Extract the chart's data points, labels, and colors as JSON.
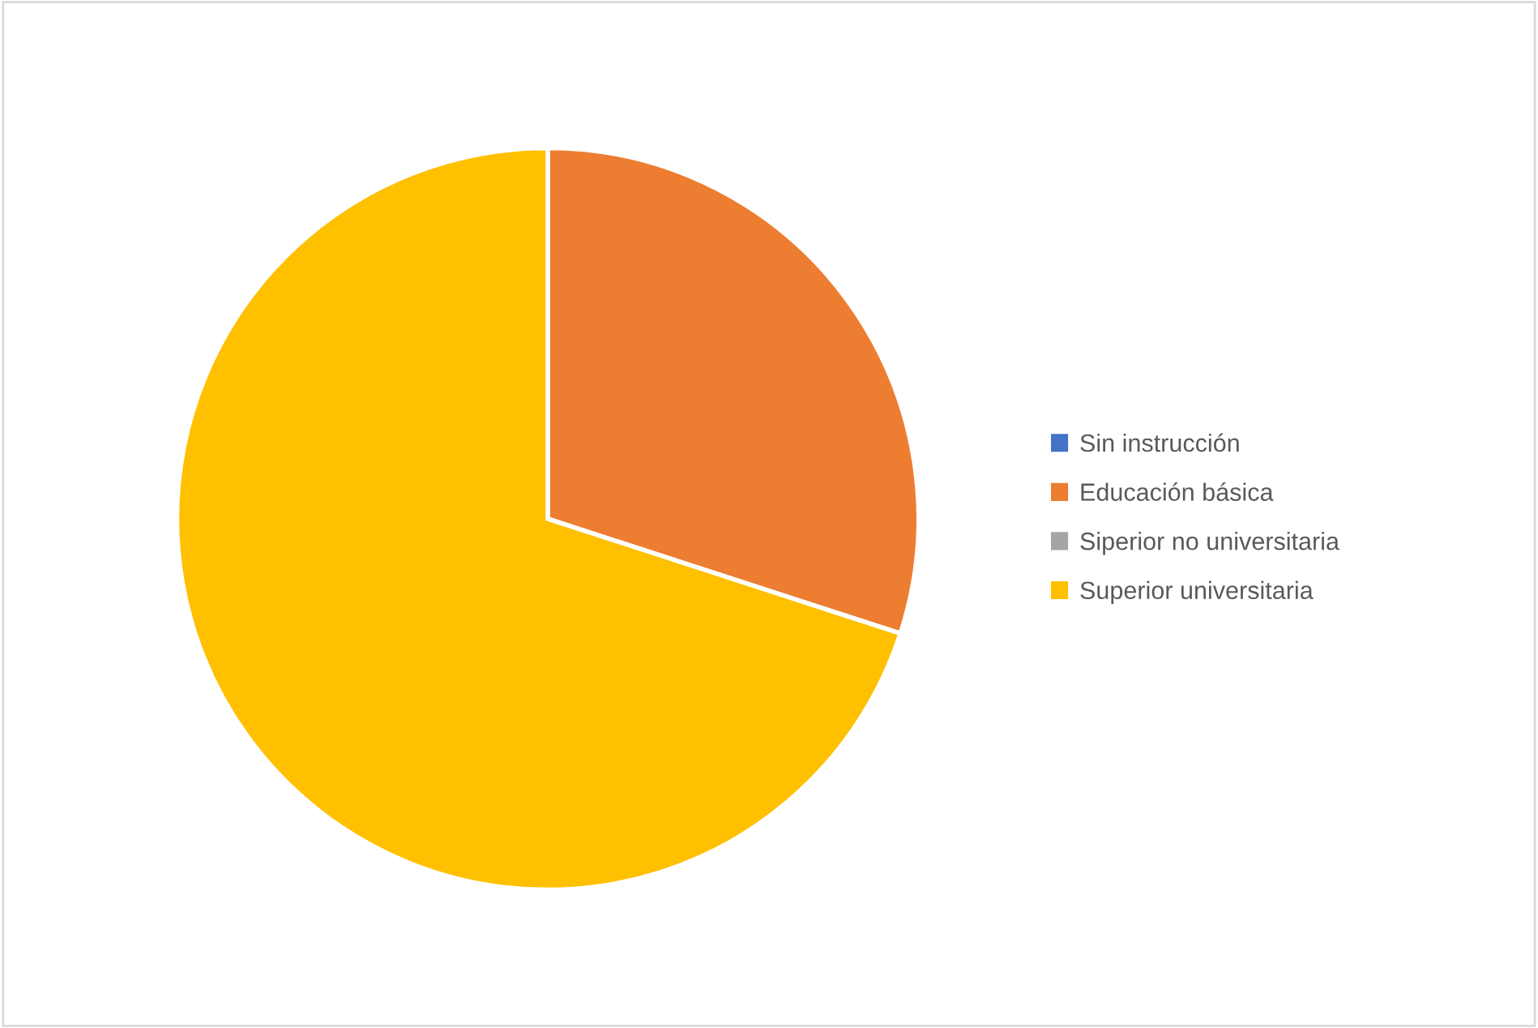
{
  "chart_data": {
    "type": "pie",
    "categories": [
      "Sin instrucción",
      "Educación básica",
      "Siperior no universitaria",
      "Superior universitaria"
    ],
    "values": [
      0,
      30,
      0,
      70
    ],
    "colors": [
      "#4472c4",
      "#ed7d31",
      "#a5a5a5",
      "#ffc000"
    ],
    "legend": "right"
  }
}
